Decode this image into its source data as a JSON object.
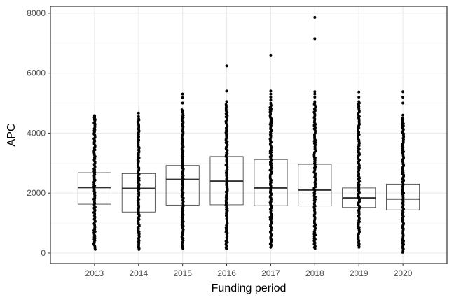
{
  "chart_data": {
    "type": "boxplot",
    "xlabel": "Funding period",
    "ylabel": "APC",
    "ylim": [
      -350,
      8230
    ],
    "yticks": [
      0,
      2000,
      4000,
      6000,
      8000
    ],
    "grid": true,
    "categories": [
      "2013",
      "2014",
      "2015",
      "2016",
      "2017",
      "2018",
      "2019",
      "2020"
    ],
    "boxes": [
      {
        "q1": 1630,
        "median": 2180,
        "q3": 2680,
        "points_low": 120,
        "points_high": 4560
      },
      {
        "q1": 1370,
        "median": 2160,
        "q3": 2650,
        "points_low": 100,
        "points_high": 4480
      },
      {
        "q1": 1600,
        "median": 2460,
        "q3": 2920,
        "points_low": 130,
        "points_high": 4780
      },
      {
        "q1": 1610,
        "median": 2400,
        "q3": 3220,
        "points_low": 110,
        "points_high": 4950
      },
      {
        "q1": 1580,
        "median": 2170,
        "q3": 3120,
        "points_low": 160,
        "points_high": 5000
      },
      {
        "q1": 1570,
        "median": 2100,
        "q3": 2960,
        "points_low": 150,
        "points_high": 5000
      },
      {
        "q1": 1520,
        "median": 1840,
        "q3": 2170,
        "points_low": 180,
        "points_high": 5000
      },
      {
        "q1": 1440,
        "median": 1800,
        "q3": 2300,
        "points_low": 20,
        "points_high": 4500
      }
    ],
    "outliers": [
      [
        4580,
        4530,
        4500,
        4450
      ],
      [
        4670,
        4550
      ],
      [
        5000,
        5180,
        5300
      ],
      [
        5050,
        5400,
        6240
      ],
      [
        5100,
        5200,
        5300,
        5400,
        6600
      ],
      [
        5050,
        5200,
        5300,
        5380,
        7150,
        7860
      ],
      [
        5050,
        5200,
        5370
      ],
      [
        4600,
        5000,
        5200,
        5380
      ]
    ]
  }
}
